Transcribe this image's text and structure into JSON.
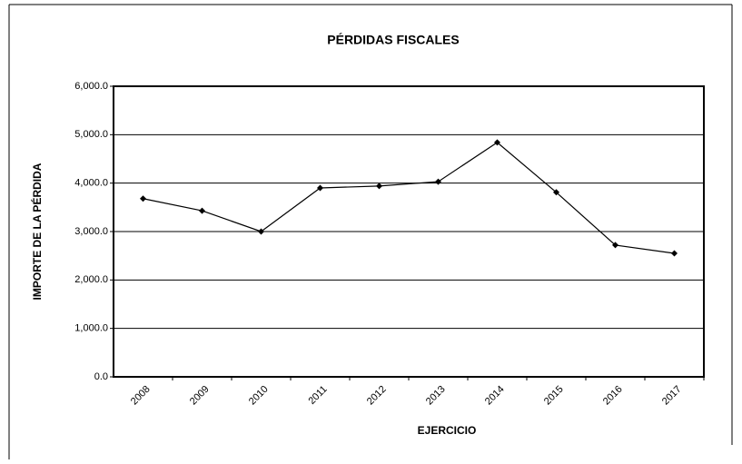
{
  "chart_data": {
    "type": "line",
    "title": "PÉRDIDAS FISCALES",
    "x_label": "EJERCICIO",
    "y_label": "IMPORTE DE LA PÉRDIDA",
    "categories": [
      "2008",
      "2009",
      "2010",
      "2011",
      "2012",
      "2013",
      "2014",
      "2015",
      "2016",
      "2017"
    ],
    "values": [
      3680,
      3430,
      3000,
      3900,
      3940,
      4030,
      4840,
      3810,
      2720,
      2550
    ],
    "color": "#000000",
    "ylim": [
      0,
      6000
    ],
    "yticks": [
      {
        "value": 0,
        "label": "0.0"
      },
      {
        "value": 1000,
        "label": "1,000.0"
      },
      {
        "value": 2000,
        "label": "2,000.0"
      },
      {
        "value": 3000,
        "label": "3,000.0"
      },
      {
        "value": 4000,
        "label": "4,000.0"
      },
      {
        "value": 5000,
        "label": "5,000.0"
      },
      {
        "value": 6000,
        "label": "6,000.0"
      }
    ],
    "grid": true
  }
}
